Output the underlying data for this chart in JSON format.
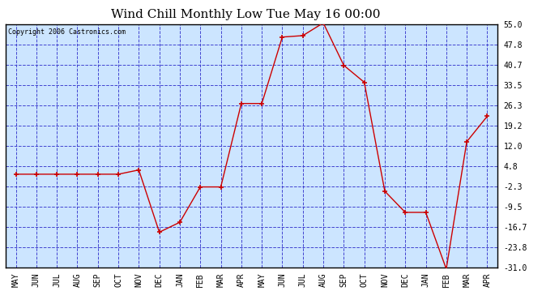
{
  "title": "Wind Chill Monthly Low Tue May 16 00:00",
  "copyright": "Copyright 2006 Castronics.com",
  "x_labels": [
    "MAY",
    "JUN",
    "JUL",
    "AUG",
    "SEP",
    "OCT",
    "NOV",
    "DEC",
    "JAN",
    "FEB",
    "MAR",
    "APR",
    "MAY",
    "JUN",
    "JUL",
    "AUG",
    "SEP",
    "OCT",
    "NOV",
    "DEC",
    "JAN",
    "FEB",
    "MAR",
    "APR"
  ],
  "y_values": [
    2.0,
    2.0,
    2.0,
    2.0,
    2.0,
    2.0,
    3.5,
    -18.5,
    -15.0,
    -2.5,
    -2.5,
    27.0,
    27.0,
    50.5,
    51.0,
    55.5,
    40.5,
    34.5,
    -4.0,
    -11.5,
    -11.5,
    -31.5,
    13.5,
    22.5
  ],
  "y_ticks": [
    55.0,
    47.8,
    40.7,
    33.5,
    26.3,
    19.2,
    12.0,
    4.8,
    -2.3,
    -9.5,
    -16.7,
    -23.8,
    -31.0
  ],
  "y_min": -31.0,
  "y_max": 55.0,
  "line_color": "#cc0000",
  "marker_color": "#cc0000",
  "bg_color": "#ffffff",
  "plot_bg": "#cce5ff",
  "grid_color": "#3333cc",
  "border_color": "#000000",
  "title_fontsize": 11,
  "copyright_fontsize": 6,
  "tick_fontsize": 7,
  "label_fontsize": 7
}
